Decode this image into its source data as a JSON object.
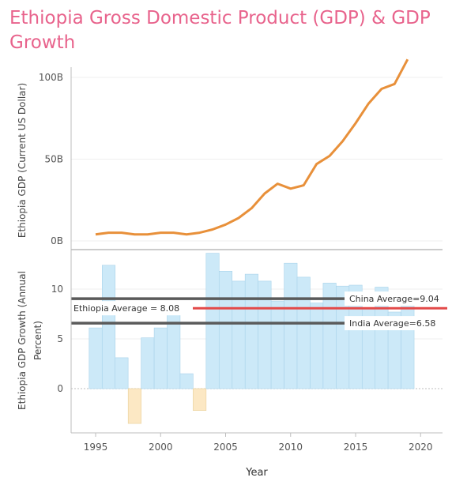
{
  "title": "Ethiopia Gross Domestic Product (GDP) & GDP Growth",
  "colors": {
    "title": "#e8638c",
    "gdp_line": "#e8903a",
    "growth_positive": "#cce9f8",
    "growth_negative": "#fce8c4",
    "ethiopia_avg_line": "#e34948",
    "reference_lines": "#5a5a5a"
  },
  "chart_data": [
    {
      "type": "line",
      "ylabel": "Ethiopia GDP (Current US Dollar)",
      "xlabel": "Year",
      "ylim": [
        0,
        100
      ],
      "yticks": [
        {
          "value": 0,
          "label": "0B"
        },
        {
          "value": 50,
          "label": "50B"
        },
        {
          "value": 100,
          "label": "100B"
        }
      ],
      "x": [
        1995,
        1996,
        1997,
        1998,
        1999,
        2000,
        2001,
        2002,
        2003,
        2004,
        2005,
        2006,
        2007,
        2008,
        2009,
        2010,
        2011,
        2012,
        2013,
        2014,
        2015,
        2016,
        2017,
        2018,
        2019
      ],
      "values": [
        4,
        5,
        5,
        4,
        4,
        5,
        5,
        4,
        5,
        7,
        10,
        14,
        20,
        29,
        35,
        32,
        34,
        47,
        52,
        61,
        72,
        84,
        93,
        96,
        111
      ],
      "series": [
        {
          "name": "",
          "values": [
            4,
            5,
            5,
            4,
            4,
            5,
            5,
            4,
            5,
            7,
            10,
            14,
            20,
            29,
            35,
            32,
            34,
            47,
            52,
            61,
            72,
            84,
            93,
            96,
            111
          ]
        }
      ]
    },
    {
      "type": "bar",
      "ylabel": "Ethiopia GDP Growth (Annual Percent)",
      "xlabel": "Year",
      "ylim": [
        -4,
        14
      ],
      "yticks": [
        {
          "value": 0,
          "label": "0"
        },
        {
          "value": 5,
          "label": "5"
        },
        {
          "value": 10,
          "label": "10"
        }
      ],
      "x": [
        1995,
        1996,
        1997,
        1998,
        1999,
        2000,
        2001,
        2002,
        2003,
        2004,
        2005,
        2006,
        2007,
        2008,
        2009,
        2010,
        2011,
        2012,
        2013,
        2014,
        2015,
        2016,
        2017,
        2018,
        2019
      ],
      "values": [
        6.1,
        12.4,
        3.1,
        -3.5,
        5.1,
        6.1,
        8.3,
        1.5,
        -2.2,
        13.6,
        11.8,
        10.8,
        11.5,
        10.8,
        8.8,
        12.6,
        11.2,
        8.6,
        10.6,
        10.3,
        10.4,
        8,
        10.2,
        7.7,
        9
      ],
      "reference_lines": [
        {
          "label": "China Average=9.04",
          "value": 9.04
        },
        {
          "label": "Ethiopia Average = 8.08",
          "value": 8.08
        },
        {
          "label": "India Average=6.58",
          "value": 6.58
        }
      ]
    }
  ],
  "x_axis": {
    "label": "Year",
    "ticks": [
      "1995",
      "2000",
      "2005",
      "2010",
      "2015",
      "2020"
    ]
  }
}
